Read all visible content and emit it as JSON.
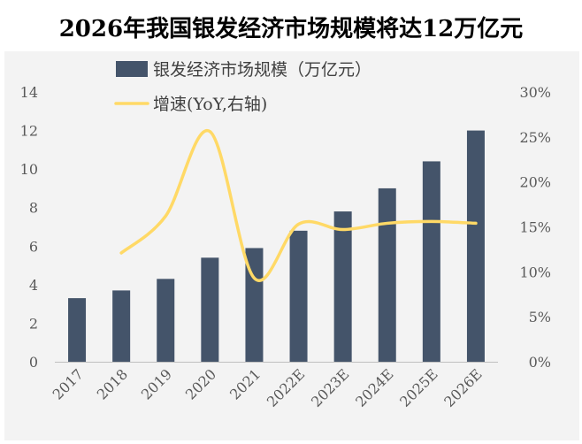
{
  "chart_data": {
    "type": "bar",
    "title": "2026年我国银发经济市场规模将达12万亿元",
    "categories": [
      "2017",
      "2018",
      "2019",
      "2020",
      "2021",
      "2022E",
      "2023E",
      "2024E",
      "2025E",
      "2026E"
    ],
    "series": [
      {
        "name": "银发经济市场规模（万亿元）",
        "type": "bar",
        "axis": "left",
        "color": "#44546a",
        "values": [
          3.3,
          3.7,
          4.3,
          5.4,
          5.9,
          6.8,
          7.8,
          9.0,
          10.4,
          12.0
        ]
      },
      {
        "name": "增速(YoY,右轴)",
        "type": "line",
        "axis": "right",
        "color": "#ffd966",
        "values": [
          null,
          12.1,
          16.2,
          25.6,
          9.3,
          15.3,
          14.7,
          15.4,
          15.6,
          15.4
        ]
      }
    ],
    "y_left": {
      "ylim": [
        0,
        14
      ],
      "ticks": [
        "0",
        "2",
        "4",
        "6",
        "8",
        "10",
        "12",
        "14"
      ]
    },
    "y_right": {
      "ylim": [
        0,
        30
      ],
      "ticks": [
        "0%",
        "5%",
        "10%",
        "15%",
        "20%",
        "25%",
        "30%"
      ]
    },
    "legend_position": "top",
    "grid": false
  }
}
